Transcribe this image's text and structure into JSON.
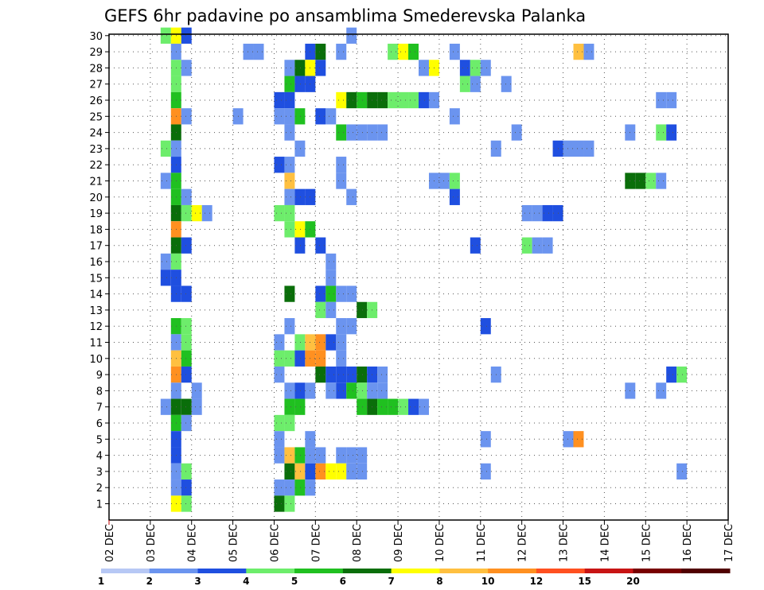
{
  "chart_data": {
    "type": "heatmap",
    "title": "GEFS 6hr padavine po ansamblima Smederevska Palanka",
    "x_ticks": [
      "02 DEC",
      "03 DEC",
      "04 DEC",
      "05 DEC",
      "06 DEC",
      "07 DEC",
      "08 DEC",
      "09 DEC",
      "10 DEC",
      "11 DEC",
      "12 DEC",
      "13 DEC",
      "14 DEC",
      "15 DEC",
      "16 DEC",
      "17 DEC"
    ],
    "y_ticks": [
      1,
      2,
      3,
      4,
      5,
      6,
      7,
      8,
      9,
      10,
      11,
      12,
      13,
      14,
      15,
      16,
      17,
      18,
      19,
      20,
      21,
      22,
      23,
      24,
      25,
      26,
      27,
      28,
      29,
      30
    ],
    "time_step_hours": 6,
    "grid": true,
    "colorbar": {
      "labels": [
        "1",
        "2",
        "3",
        "4",
        "5",
        "6",
        "7",
        "8",
        "10",
        "12",
        "15",
        "20"
      ],
      "colors": [
        "#b7c8f5",
        "#6b94ef",
        "#1f4fe0",
        "#6ded6b",
        "#20c020",
        "#0a6e0a",
        "#ffff00",
        "#ffc040",
        "#ff9020",
        "#ff5020",
        "#c81414",
        "#780000",
        "#500000"
      ]
    },
    "cells": [
      [
        30,
        4.25,
        3
      ],
      [
        30,
        4.5,
        6
      ],
      [
        30,
        4.75,
        2
      ],
      [
        30,
        8.75,
        1
      ],
      [
        29,
        4.5,
        1
      ],
      [
        29,
        6.25,
        1
      ],
      [
        29,
        6.5,
        1
      ],
      [
        29,
        7.75,
        2
      ],
      [
        29,
        8,
        5
      ],
      [
        29,
        8.5,
        1
      ],
      [
        29,
        9.75,
        3
      ],
      [
        29,
        10,
        6
      ],
      [
        29,
        10.25,
        4
      ],
      [
        29,
        11.25,
        1
      ],
      [
        29,
        14.25,
        7
      ],
      [
        29,
        14.5,
        1
      ],
      [
        28,
        4.5,
        3
      ],
      [
        28,
        4.75,
        1
      ],
      [
        28,
        7.25,
        1
      ],
      [
        28,
        7.5,
        5
      ],
      [
        28,
        7.75,
        6
      ],
      [
        28,
        8,
        2
      ],
      [
        28,
        10.5,
        1
      ],
      [
        28,
        10.75,
        6
      ],
      [
        28,
        11.5,
        2
      ],
      [
        28,
        11.75,
        3
      ],
      [
        28,
        12,
        1
      ],
      [
        27,
        4.5,
        3
      ],
      [
        27,
        7.25,
        4
      ],
      [
        27,
        7.5,
        2
      ],
      [
        27,
        7.75,
        2
      ],
      [
        27,
        11.5,
        3
      ],
      [
        27,
        11.75,
        1
      ],
      [
        27,
        12.5,
        1
      ],
      [
        26,
        4.5,
        4
      ],
      [
        26,
        7,
        2
      ],
      [
        26,
        7.25,
        2
      ],
      [
        26,
        8.5,
        6
      ],
      [
        26,
        8.75,
        5
      ],
      [
        26,
        9,
        4
      ],
      [
        26,
        9.25,
        5
      ],
      [
        26,
        9.5,
        5
      ],
      [
        26,
        9.75,
        3
      ],
      [
        26,
        10,
        3
      ],
      [
        26,
        10.25,
        3
      ],
      [
        26,
        10.5,
        2
      ],
      [
        26,
        10.75,
        1
      ],
      [
        26,
        16.25,
        1
      ],
      [
        26,
        16.5,
        1
      ],
      [
        25,
        4.5,
        8
      ],
      [
        25,
        4.75,
        1
      ],
      [
        25,
        6,
        1
      ],
      [
        25,
        7,
        1
      ],
      [
        25,
        7.25,
        1
      ],
      [
        25,
        7.5,
        4
      ],
      [
        25,
        8,
        2
      ],
      [
        25,
        8.25,
        1
      ],
      [
        25,
        11.25,
        1
      ],
      [
        24,
        4.5,
        5
      ],
      [
        24,
        7.25,
        1
      ],
      [
        24,
        8.5,
        4
      ],
      [
        24,
        8.75,
        1
      ],
      [
        24,
        9,
        1
      ],
      [
        24,
        9.25,
        1
      ],
      [
        24,
        9.5,
        1
      ],
      [
        24,
        12.75,
        1
      ],
      [
        24,
        15.5,
        1
      ],
      [
        24,
        16.25,
        3
      ],
      [
        24,
        16.5,
        2
      ],
      [
        23,
        4.25,
        3
      ],
      [
        23,
        4.5,
        1
      ],
      [
        23,
        7.5,
        1
      ],
      [
        23,
        12.25,
        1
      ],
      [
        23,
        13.75,
        2
      ],
      [
        23,
        14,
        1
      ],
      [
        23,
        14.25,
        1
      ],
      [
        23,
        14.5,
        1
      ],
      [
        22,
        4.5,
        2
      ],
      [
        22,
        7,
        2
      ],
      [
        22,
        7.25,
        1
      ],
      [
        22,
        8.5,
        1
      ],
      [
        21,
        4.25,
        1
      ],
      [
        21,
        4.5,
        4
      ],
      [
        21,
        7.25,
        7
      ],
      [
        21,
        8.5,
        1
      ],
      [
        21,
        10.75,
        1
      ],
      [
        21,
        11,
        1
      ],
      [
        21,
        11.25,
        3
      ],
      [
        21,
        15.5,
        5
      ],
      [
        21,
        15.75,
        5
      ],
      [
        21,
        16,
        3
      ],
      [
        21,
        16.25,
        1
      ],
      [
        20,
        4.5,
        4
      ],
      [
        20,
        4.75,
        1
      ],
      [
        20,
        7.25,
        1
      ],
      [
        20,
        7.5,
        2
      ],
      [
        20,
        7.75,
        2
      ],
      [
        20,
        8.75,
        1
      ],
      [
        20,
        11.25,
        2
      ],
      [
        19,
        4.5,
        5
      ],
      [
        19,
        4.75,
        3
      ],
      [
        19,
        5,
        6
      ],
      [
        19,
        5.25,
        1
      ],
      [
        19,
        7,
        3
      ],
      [
        19,
        7.25,
        3
      ],
      [
        19,
        13,
        1
      ],
      [
        19,
        13.25,
        1
      ],
      [
        19,
        13.5,
        2
      ],
      [
        19,
        13.75,
        2
      ],
      [
        18,
        4.5,
        8
      ],
      [
        18,
        7.25,
        3
      ],
      [
        18,
        7.5,
        6
      ],
      [
        18,
        7.75,
        4
      ],
      [
        17,
        4.5,
        5
      ],
      [
        17,
        4.75,
        2
      ],
      [
        17,
        7.5,
        2
      ],
      [
        17,
        8,
        2
      ],
      [
        17,
        11.75,
        2
      ],
      [
        17,
        13,
        3
      ],
      [
        17,
        13.25,
        1
      ],
      [
        17,
        13.5,
        1
      ],
      [
        16,
        4.25,
        1
      ],
      [
        16,
        4.5,
        3
      ],
      [
        16,
        8.25,
        1
      ],
      [
        15,
        4.25,
        2
      ],
      [
        15,
        4.5,
        2
      ],
      [
        15,
        8.25,
        1
      ],
      [
        14,
        4.5,
        2
      ],
      [
        14,
        4.75,
        2
      ],
      [
        14,
        7.25,
        5
      ],
      [
        14,
        8,
        2
      ],
      [
        14,
        8.25,
        4
      ],
      [
        14,
        8.5,
        1
      ],
      [
        14,
        8.75,
        1
      ],
      [
        13,
        8,
        3
      ],
      [
        13,
        8.25,
        1
      ],
      [
        13,
        9,
        5
      ],
      [
        13,
        9.25,
        3
      ],
      [
        12,
        4.5,
        4
      ],
      [
        12,
        4.75,
        3
      ],
      [
        12,
        7.25,
        1
      ],
      [
        12,
        8.5,
        1
      ],
      [
        12,
        8.75,
        1
      ],
      [
        12,
        12,
        2
      ],
      [
        11,
        4.5,
        1
      ],
      [
        11,
        4.75,
        3
      ],
      [
        11,
        7,
        1
      ],
      [
        11,
        7.5,
        3
      ],
      [
        11,
        7.75,
        7
      ],
      [
        11,
        8,
        8
      ],
      [
        11,
        8.25,
        2
      ],
      [
        11,
        8.5,
        1
      ],
      [
        10,
        4.5,
        7
      ],
      [
        10,
        4.75,
        4
      ],
      [
        10,
        7,
        3
      ],
      [
        10,
        7.25,
        3
      ],
      [
        10,
        7.5,
        2
      ],
      [
        10,
        7.75,
        8
      ],
      [
        10,
        8,
        8
      ],
      [
        10,
        8.5,
        1
      ],
      [
        9,
        4.5,
        8
      ],
      [
        9,
        4.75,
        2
      ],
      [
        9,
        7,
        1
      ],
      [
        9,
        8,
        5
      ],
      [
        9,
        8.25,
        2
      ],
      [
        9,
        8.5,
        2
      ],
      [
        9,
        8.75,
        2
      ],
      [
        9,
        9,
        5
      ],
      [
        9,
        9.25,
        2
      ],
      [
        9,
        9.5,
        1
      ],
      [
        9,
        12.25,
        1
      ],
      [
        9,
        16.5,
        2
      ],
      [
        9,
        16.75,
        3
      ],
      [
        8,
        4.5,
        1
      ],
      [
        8,
        5,
        1
      ],
      [
        8,
        7.25,
        1
      ],
      [
        8,
        7.5,
        2
      ],
      [
        8,
        7.75,
        1
      ],
      [
        8,
        8.25,
        1
      ],
      [
        8,
        8.5,
        2
      ],
      [
        8,
        8.75,
        4
      ],
      [
        8,
        9,
        3
      ],
      [
        8,
        9.25,
        1
      ],
      [
        8,
        9.5,
        1
      ],
      [
        8,
        15.5,
        1
      ],
      [
        8,
        16.25,
        1
      ],
      [
        7,
        4.25,
        1
      ],
      [
        7,
        4.5,
        5
      ],
      [
        7,
        4.75,
        5
      ],
      [
        7,
        5,
        1
      ],
      [
        7,
        7.25,
        4
      ],
      [
        7,
        7.5,
        4
      ],
      [
        7,
        9,
        4
      ],
      [
        7,
        9.25,
        5
      ],
      [
        7,
        9.5,
        4
      ],
      [
        7,
        9.75,
        4
      ],
      [
        7,
        10,
        3
      ],
      [
        7,
        10.25,
        2
      ],
      [
        7,
        10.5,
        1
      ],
      [
        6,
        4.5,
        4
      ],
      [
        6,
        4.75,
        1
      ],
      [
        6,
        7,
        3
      ],
      [
        6,
        7.25,
        3
      ],
      [
        5,
        4.5,
        2
      ],
      [
        5,
        7,
        1
      ],
      [
        5,
        7.75,
        1
      ],
      [
        5,
        12,
        1
      ],
      [
        5,
        14,
        1
      ],
      [
        5,
        14.25,
        8
      ],
      [
        4,
        4.5,
        2
      ],
      [
        4,
        7,
        1
      ],
      [
        4,
        7.25,
        7
      ],
      [
        4,
        7.5,
        4
      ],
      [
        4,
        7.75,
        1
      ],
      [
        4,
        8,
        1
      ],
      [
        4,
        8.5,
        1
      ],
      [
        4,
        8.75,
        1
      ],
      [
        4,
        9,
        1
      ],
      [
        3,
        4.5,
        1
      ],
      [
        3,
        4.75,
        3
      ],
      [
        3,
        7.25,
        5
      ],
      [
        3,
        7.5,
        7
      ],
      [
        3,
        7.75,
        2
      ],
      [
        3,
        8,
        8
      ],
      [
        3,
        8.25,
        6
      ],
      [
        3,
        8.5,
        6
      ],
      [
        3,
        8.75,
        1
      ],
      [
        3,
        9,
        1
      ],
      [
        3,
        12,
        1
      ],
      [
        3,
        16.75,
        1
      ],
      [
        2,
        4.5,
        1
      ],
      [
        2,
        4.75,
        2
      ],
      [
        2,
        7,
        1
      ],
      [
        2,
        7.25,
        1
      ],
      [
        2,
        7.5,
        4
      ],
      [
        2,
        7.75,
        1
      ],
      [
        1,
        4.5,
        6
      ],
      [
        1,
        4.75,
        3
      ],
      [
        1,
        7,
        5
      ],
      [
        1,
        7.25,
        3
      ]
    ]
  }
}
